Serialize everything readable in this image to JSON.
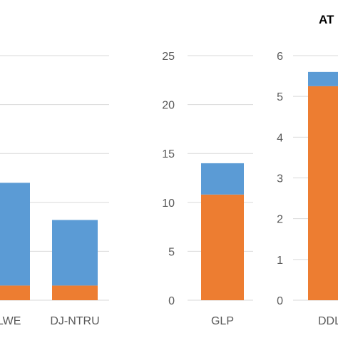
{
  "title_fragment": "AT",
  "colors": {
    "series_a": "#ed7d31",
    "series_b": "#5b9bd5",
    "grid": "#d9d9d9",
    "axis_text": "#595959"
  },
  "chart_data": [
    {
      "type": "bar",
      "stacked": true,
      "categories": [
        "-LWE",
        "DJ-NTRU"
      ],
      "series": [
        {
          "values": [
            1.5,
            1.5
          ]
        },
        {
          "values": [
            10.5,
            6.7
          ]
        }
      ],
      "y_ticks": [],
      "grid": true
    },
    {
      "type": "bar",
      "stacked": true,
      "categories": [
        "GLP"
      ],
      "series": [
        {
          "values": [
            10.8
          ]
        },
        {
          "values": [
            3.2
          ]
        }
      ],
      "ylim": [
        0,
        25
      ],
      "y_ticks": [
        "0",
        "5",
        "10",
        "15",
        "20",
        "25"
      ],
      "grid": true
    },
    {
      "type": "bar",
      "stacked": true,
      "categories": [
        "DDL"
      ],
      "series": [
        {
          "values": [
            5.25
          ]
        },
        {
          "values": [
            0.35
          ]
        }
      ],
      "ylim": [
        0,
        6
      ],
      "y_ticks": [
        "0",
        "1",
        "2",
        "3",
        "4",
        "5",
        "6"
      ],
      "grid": true
    }
  ]
}
